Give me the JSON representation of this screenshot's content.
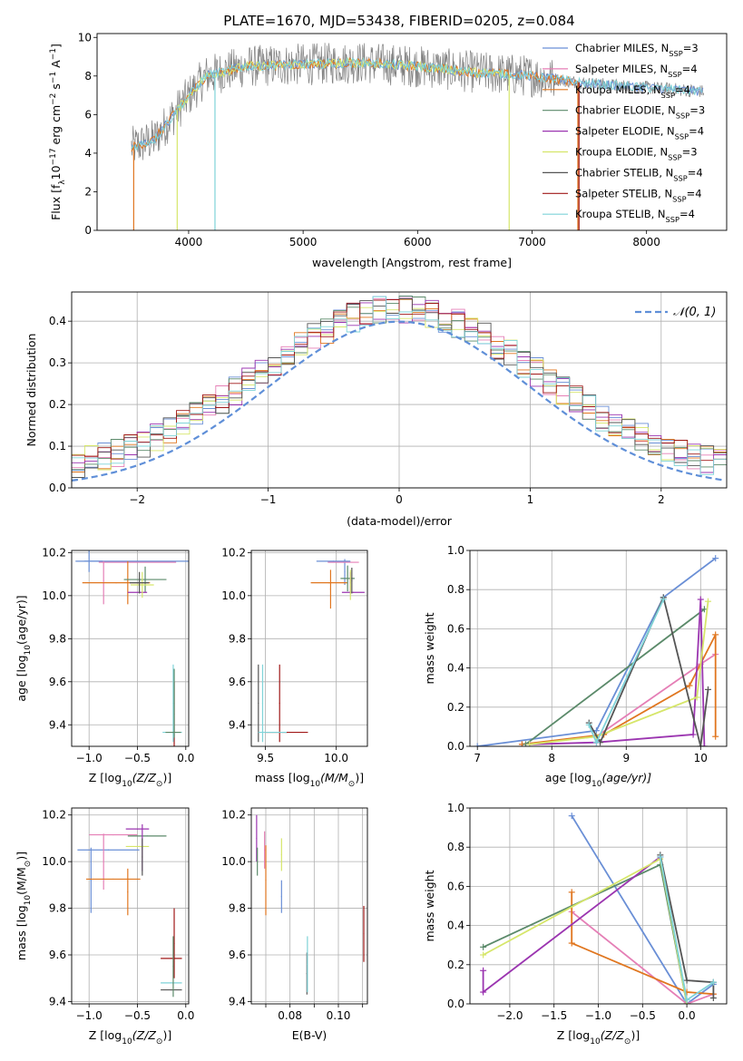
{
  "figure": {
    "title": "PLATE=1670, MJD=53438, FIBERID=0205, z=0.084"
  },
  "colors": {
    "chabrier_miles": "#6a8fd6",
    "salpeter_miles": "#e57fb6",
    "kroupa_miles": "#e0761f",
    "chabrier_elodie": "#5b8a6a",
    "salpeter_elodie": "#9b35b0",
    "kroupa_elodie": "#d6e66a",
    "chabrier_stelib": "#555555",
    "salpeter_stelib": "#a01818",
    "kroupa_stelib": "#7fd3d8",
    "data": "#808080",
    "normal": "#5f8fd8"
  },
  "chart_data": [
    {
      "id": "spectrum",
      "type": "line",
      "title": "PLATE=1670, MJD=53438, FIBERID=0205, z=0.084",
      "xlabel": "wavelength [Angstrom, rest frame]",
      "ylabel_parts": [
        "Flux [f",
        "λ",
        "10",
        "−17",
        " erg cm",
        "−2",
        " s",
        "−1",
        " A",
        "−1",
        "]"
      ],
      "xlim": [
        3200,
        8700
      ],
      "ylim": [
        0,
        10.2
      ],
      "xticks": [
        4000,
        5000,
        6000,
        7000,
        8000
      ],
      "yticks": [
        0,
        2,
        4,
        6,
        8,
        10
      ],
      "grid": false,
      "legend_position": "top-right",
      "legend": [
        {
          "name": "Chabrier MILES, N",
          "sub": "SSP",
          "suffix": "=3",
          "color": "#6a8fd6"
        },
        {
          "name": "Salpeter MILES, N",
          "sub": "SSP",
          "suffix": "=4",
          "color": "#e57fb6"
        },
        {
          "name": "Kroupa MILES, N",
          "sub": "SSP",
          "suffix": "=4",
          "color": "#e0761f"
        },
        {
          "name": "Chabrier ELODIE, N",
          "sub": "SSP",
          "suffix": "=3",
          "color": "#5b8a6a"
        },
        {
          "name": "Salpeter ELODIE, N",
          "sub": "SSP",
          "suffix": "=4",
          "color": "#9b35b0"
        },
        {
          "name": "Kroupa ELODIE, N",
          "sub": "SSP",
          "suffix": "=3",
          "color": "#d6e66a"
        },
        {
          "name": "Chabrier STELIB, N",
          "sub": "SSP",
          "suffix": "=4",
          "color": "#555555"
        },
        {
          "name": "Salpeter STELIB, N",
          "sub": "SSP",
          "suffix": "=4",
          "color": "#a01818"
        },
        {
          "name": "Kroupa STELIB, N",
          "sub": "SSP",
          "suffix": "=4",
          "color": "#7fd3d8"
        }
      ],
      "data_wavelength_range": [
        3500,
        8500
      ],
      "continuum_anchors": [
        [
          3500,
          4.3
        ],
        [
          3700,
          4.7
        ],
        [
          3950,
          6.6
        ],
        [
          4150,
          8.0
        ],
        [
          4500,
          8.5
        ],
        [
          5000,
          8.6
        ],
        [
          5500,
          8.7
        ],
        [
          6000,
          8.5
        ],
        [
          6500,
          8.2
        ],
        [
          7000,
          8.0
        ],
        [
          7500,
          7.6
        ],
        [
          8000,
          7.4
        ],
        [
          8500,
          7.2
        ]
      ],
      "model_ranges": [
        {
          "color": "#6a8fd6",
          "range": [
            3500,
            8500
          ]
        },
        {
          "color": "#e0761f",
          "range": [
            3500,
            7400
          ]
        },
        {
          "color": "#d6e66a",
          "range": [
            3900,
            6800
          ]
        },
        {
          "color": "#7fd3d8",
          "range": [
            3500,
            8500
          ]
        }
      ],
      "model_dropouts": [
        {
          "color": "#e0761f",
          "x": 3520
        },
        {
          "color": "#e0761f",
          "x": 7400
        },
        {
          "color": "#d6e66a",
          "x": 3900
        },
        {
          "color": "#d6e66a",
          "x": 6800
        },
        {
          "color": "#7fd3d8",
          "x": 4230
        },
        {
          "color": "#a01818",
          "x": 7410
        }
      ]
    },
    {
      "id": "residuals",
      "type": "step",
      "xlabel": "(data-model)/error",
      "ylabel": "Normed distribution",
      "xlim": [
        -2.5,
        2.5
      ],
      "ylim": [
        0,
        0.47
      ],
      "xticks": [
        -2,
        -1,
        0,
        1,
        2
      ],
      "yticks": [
        0.0,
        0.1,
        0.2,
        0.3,
        0.4
      ],
      "grid": true,
      "legend_position": "top-right",
      "legend": [
        {
          "name": "𝒩(0, 1)",
          "color": "#5f8fd8",
          "style": "dashed"
        }
      ],
      "bin_width": 0.1,
      "series_colors": [
        "#6a8fd6",
        "#e57fb6",
        "#e0761f",
        "#5b8a6a",
        "#9b35b0",
        "#d6e66a",
        "#555555",
        "#a01818",
        "#7fd3d8"
      ],
      "normal": {
        "mean": 0,
        "sigma": 1
      }
    },
    {
      "id": "age_vs_Z",
      "type": "errorbar",
      "xlabel_parts": [
        "Z [log",
        "10",
        "(Z/Z",
        "⊙",
        ")]"
      ],
      "ylabel_parts": [
        "age  [log",
        "10",
        "(age/yr)]"
      ],
      "xlim": [
        -1.18,
        0.03
      ],
      "ylim": [
        9.3,
        10.21
      ],
      "xticks": [
        -1.0,
        -0.5,
        0.0
      ],
      "yticks": [
        9.4,
        9.6,
        9.8,
        10.0,
        10.2
      ],
      "grid": true,
      "points": [
        {
          "color": "#6a8fd6",
          "x": -1.0,
          "xerr": 0.14,
          "y": 10.16,
          "yerr": 0.05
        },
        {
          "color": "#6a8fd6",
          "x": -0.5,
          "xerr": 0.55,
          "y": 10.16,
          "yerr": 0.0
        },
        {
          "color": "#e57fb6",
          "x": -0.85,
          "xerr": 0.0,
          "y": 10.06,
          "yerr": 0.1
        },
        {
          "color": "#e57fb6",
          "x": -0.5,
          "xerr": 0.4,
          "y": 10.155,
          "yerr": 0.0
        },
        {
          "color": "#e0761f",
          "x": -0.72,
          "xerr": 0.35,
          "y": 10.06,
          "yerr": 0.0
        },
        {
          "color": "#e0761f",
          "x": -0.6,
          "xerr": 0.0,
          "y": 10.06,
          "yerr": 0.1
        },
        {
          "color": "#5b8a6a",
          "x": -0.42,
          "xerr": 0.22,
          "y": 10.075,
          "yerr": 0.06
        },
        {
          "color": "#9b35b0",
          "x": -0.5,
          "xerr": 0.1,
          "y": 10.015,
          "yerr": 0.0
        },
        {
          "color": "#d6e66a",
          "x": -0.45,
          "xerr": 0.12,
          "y": 10.05,
          "yerr": 0.06
        },
        {
          "color": "#555555",
          "x": -0.48,
          "xerr": 0.1,
          "y": 10.06,
          "yerr": 0.05
        },
        {
          "color": "#a01818",
          "x": -0.12,
          "xerr": 0.0,
          "y": 9.45,
          "yerr": 0.15
        },
        {
          "color": "#7fd3d8",
          "x": -0.13,
          "xerr": 0.0,
          "y": 9.5,
          "yerr": 0.18
        },
        {
          "color": "#5b8a6a",
          "x": -0.12,
          "xerr": 0.0,
          "y": 9.5,
          "yerr": 0.16
        },
        {
          "color": "#7fd3d8",
          "x": -0.14,
          "xerr": 0.1,
          "y": 9.365,
          "yerr": 0.0
        },
        {
          "color": "#5b8a6a",
          "x": -0.13,
          "xerr": 0.08,
          "y": 9.365,
          "yerr": 0.0
        }
      ]
    },
    {
      "id": "age_vs_mass",
      "type": "errorbar",
      "xlabel_parts": [
        "mass [log",
        "10",
        "(M/M",
        "⊙",
        ")]"
      ],
      "xlim": [
        9.4,
        10.22
      ],
      "ylim": [
        9.3,
        10.21
      ],
      "xticks": [
        9.5,
        10.0
      ],
      "yticks": [
        9.4,
        9.6,
        9.8,
        10.0,
        10.2
      ],
      "grid": true,
      "points": [
        {
          "color": "#6a8fd6",
          "x": 9.98,
          "xerr": 0.12,
          "y": 10.16,
          "yerr": 0.0
        },
        {
          "color": "#6a8fd6",
          "x": 10.06,
          "xerr": 0.0,
          "y": 10.11,
          "yerr": 0.06
        },
        {
          "color": "#e57fb6",
          "x": 10.05,
          "xerr": 0.11,
          "y": 10.155,
          "yerr": 0.0
        },
        {
          "color": "#e0761f",
          "x": 9.95,
          "xerr": 0.13,
          "y": 10.06,
          "yerr": 0.0
        },
        {
          "color": "#e0761f",
          "x": 9.96,
          "xerr": 0.0,
          "y": 10.03,
          "yerr": 0.09
        },
        {
          "color": "#5b8a6a",
          "x": 10.08,
          "xerr": 0.05,
          "y": 10.08,
          "yerr": 0.06
        },
        {
          "color": "#9b35b0",
          "x": 10.12,
          "xerr": 0.08,
          "y": 10.015,
          "yerr": 0.0
        },
        {
          "color": "#9b35b0",
          "x": 10.1,
          "xerr": 0.0,
          "y": 10.06,
          "yerr": 0.05
        },
        {
          "color": "#d6e66a",
          "x": 10.1,
          "xerr": 0.0,
          "y": 10.05,
          "yerr": 0.07
        },
        {
          "color": "#555555",
          "x": 10.11,
          "xerr": 0.0,
          "y": 10.07,
          "yerr": 0.06
        },
        {
          "color": "#555555",
          "x": 9.45,
          "xerr": 0.0,
          "y": 9.5,
          "yerr": 0.18
        },
        {
          "color": "#7fd3d8",
          "x": 9.48,
          "xerr": 0.0,
          "y": 9.5,
          "yerr": 0.18
        },
        {
          "color": "#a01818",
          "x": 9.6,
          "xerr": 0.0,
          "y": 9.5,
          "yerr": 0.18
        },
        {
          "color": "#a01818",
          "x": 9.65,
          "xerr": 0.15,
          "y": 9.365,
          "yerr": 0.0
        },
        {
          "color": "#7fd3d8",
          "x": 9.55,
          "xerr": 0.1,
          "y": 9.365,
          "yerr": 0.0
        }
      ]
    },
    {
      "id": "weight_vs_age",
      "type": "line",
      "xlabel_parts": [
        "age  [log",
        "10",
        "(age/yr)]"
      ],
      "ylabel": "mass weight",
      "xlim": [
        6.9,
        10.35
      ],
      "ylim": [
        0,
        1.0
      ],
      "xticks": [
        7,
        8,
        9,
        10
      ],
      "yticks": [
        0.0,
        0.2,
        0.4,
        0.6,
        0.8,
        1.0
      ],
      "grid": true,
      "series": [
        {
          "color": "#6a8fd6",
          "x": [
            7.0,
            8.6,
            9.5,
            10.2
          ],
          "y": [
            0.0,
            0.08,
            0.76,
            0.96
          ]
        },
        {
          "color": "#e57fb6",
          "x": [
            7.6,
            8.6,
            10.0,
            10.2
          ],
          "y": [
            0.01,
            0.05,
            0.42,
            0.47
          ]
        },
        {
          "color": "#e0761f",
          "x": [
            7.6,
            8.7,
            9.85,
            10.2,
            10.2
          ],
          "y": [
            0.01,
            0.06,
            0.31,
            0.57,
            0.05
          ]
        },
        {
          "color": "#5b8a6a",
          "x": [
            7.65,
            10.05
          ],
          "y": [
            0.01,
            0.7
          ]
        },
        {
          "color": "#9b35b0",
          "x": [
            7.7,
            8.6,
            9.9,
            10.0,
            10.05
          ],
          "y": [
            0.01,
            0.02,
            0.06,
            0.75,
            0.0
          ]
        },
        {
          "color": "#d6e66a",
          "x": [
            7.7,
            8.6,
            9.95,
            10.1
          ],
          "y": [
            0.01,
            0.05,
            0.25,
            0.74
          ]
        },
        {
          "color": "#555555",
          "x": [
            8.5,
            8.65,
            9.5,
            10.0,
            10.1
          ],
          "y": [
            0.12,
            0.02,
            0.76,
            0.0,
            0.29
          ]
        },
        {
          "color": "#7fd3d8",
          "x": [
            8.5,
            8.6,
            9.5
          ],
          "y": [
            0.11,
            0.02,
            0.75
          ]
        }
      ]
    },
    {
      "id": "mass_vs_Z",
      "type": "errorbar",
      "xlabel_parts": [
        "Z [log",
        "10",
        "(Z/Z",
        "⊙",
        ")]"
      ],
      "ylabel_parts": [
        "mass [log",
        "10",
        "(M/M",
        "⊙",
        ")]"
      ],
      "xlim": [
        -1.18,
        0.03
      ],
      "ylim": [
        9.39,
        10.23
      ],
      "xticks": [
        -1.0,
        -0.5,
        0.0
      ],
      "yticks": [
        9.4,
        9.6,
        9.8,
        10.0,
        10.2
      ],
      "grid": true,
      "points": [
        {
          "color": "#6a8fd6",
          "x": -0.8,
          "xerr": 0.32,
          "y": 10.05,
          "yerr": 0.0
        },
        {
          "color": "#6a8fd6",
          "x": -0.98,
          "xerr": 0.0,
          "y": 9.92,
          "yerr": 0.14
        },
        {
          "color": "#e57fb6",
          "x": -0.75,
          "xerr": 0.25,
          "y": 10.115,
          "yerr": 0.0
        },
        {
          "color": "#e57fb6",
          "x": -0.85,
          "xerr": 0.0,
          "y": 10.0,
          "yerr": 0.12
        },
        {
          "color": "#e0761f",
          "x": -0.75,
          "xerr": 0.28,
          "y": 9.925,
          "yerr": 0.0
        },
        {
          "color": "#e0761f",
          "x": -0.6,
          "xerr": 0.0,
          "y": 9.87,
          "yerr": 0.1
        },
        {
          "color": "#5b8a6a",
          "x": -0.4,
          "xerr": 0.2,
          "y": 10.11,
          "yerr": 0.0
        },
        {
          "color": "#9b35b0",
          "x": -0.5,
          "xerr": 0.12,
          "y": 10.14,
          "yerr": 0.0
        },
        {
          "color": "#9b35b0",
          "x": -0.45,
          "xerr": 0.0,
          "y": 10.06,
          "yerr": 0.1
        },
        {
          "color": "#d6e66a",
          "x": -0.5,
          "xerr": 0.12,
          "y": 10.065,
          "yerr": 0.0
        },
        {
          "color": "#555555",
          "x": -0.45,
          "xerr": 0.0,
          "y": 10.02,
          "yerr": 0.08
        },
        {
          "color": "#a01818",
          "x": -0.15,
          "xerr": 0.11,
          "y": 9.585,
          "yerr": 0.0
        },
        {
          "color": "#a01818",
          "x": -0.12,
          "xerr": 0.0,
          "y": 9.65,
          "yerr": 0.15
        },
        {
          "color": "#7fd3d8",
          "x": -0.15,
          "xerr": 0.11,
          "y": 9.48,
          "yerr": 0.0
        },
        {
          "color": "#555555",
          "x": -0.15,
          "xerr": 0.11,
          "y": 9.45,
          "yerr": 0.0
        },
        {
          "color": "#5b8a6a",
          "x": -0.13,
          "xerr": 0.0,
          "y": 9.55,
          "yerr": 0.13
        }
      ]
    },
    {
      "id": "mass_vs_ebv",
      "type": "errorbar",
      "xlabel": "E(B-V)",
      "xlim": [
        0.064,
        0.112
      ],
      "ylim": [
        9.39,
        10.23
      ],
      "xticks": [
        0.07,
        0.08,
        0.09,
        0.1,
        0.11
      ],
      "xtick_labels": [
        "",
        "0.08",
        "",
        "0.10",
        ""
      ],
      "yticks": [
        9.4,
        9.6,
        9.8,
        10.0,
        10.2
      ],
      "grid": true,
      "points": [
        {
          "color": "#9b35b0",
          "x": 0.0662,
          "xerr": 0.0,
          "y": 10.1,
          "yerr": 0.1
        },
        {
          "color": "#5b8a6a",
          "x": 0.0665,
          "xerr": 0.0,
          "y": 10.0,
          "yerr": 0.06
        },
        {
          "color": "#e57fb6",
          "x": 0.0695,
          "xerr": 0.0,
          "y": 10.05,
          "yerr": 0.08
        },
        {
          "color": "#e0761f",
          "x": 0.07,
          "xerr": 0.0,
          "y": 9.92,
          "yerr": 0.15
        },
        {
          "color": "#d6e66a",
          "x": 0.0765,
          "xerr": 0.0,
          "y": 10.03,
          "yerr": 0.07
        },
        {
          "color": "#6a8fd6",
          "x": 0.0765,
          "xerr": 0.0,
          "y": 9.85,
          "yerr": 0.07
        },
        {
          "color": "#555555",
          "x": 0.087,
          "xerr": 0.0,
          "y": 9.52,
          "yerr": 0.09
        },
        {
          "color": "#7fd3d8",
          "x": 0.0872,
          "xerr": 0.0,
          "y": 9.56,
          "yerr": 0.12
        },
        {
          "color": "#a01818",
          "x": 0.1105,
          "xerr": 0.0,
          "y": 9.69,
          "yerr": 0.12
        }
      ]
    },
    {
      "id": "weight_vs_Z",
      "type": "line",
      "xlabel_parts": [
        "Z [log",
        "10",
        "(Z/Z",
        "⊙",
        ")]"
      ],
      "ylabel": "mass weight",
      "xlim": [
        -2.45,
        0.45
      ],
      "ylim": [
        0,
        1.0
      ],
      "xticks": [
        -2.0,
        -1.5,
        -1.0,
        -0.5,
        0.0
      ],
      "yticks": [
        0.0,
        0.2,
        0.4,
        0.6,
        0.8,
        1.0
      ],
      "grid": true,
      "series": [
        {
          "color": "#6a8fd6",
          "x": [
            -1.3,
            0.0,
            0.3
          ],
          "y": [
            0.96,
            0.0,
            0.1
          ]
        },
        {
          "color": "#e57fb6",
          "x": [
            -1.3,
            0.0,
            0.3
          ],
          "y": [
            0.47,
            0.0,
            0.05
          ]
        },
        {
          "color": "#e0761f",
          "x": [
            -1.3,
            -1.3,
            0.0,
            0.3
          ],
          "y": [
            0.57,
            0.31,
            0.06,
            0.05
          ]
        },
        {
          "color": "#5b8a6a",
          "x": [
            -2.3,
            -0.3,
            0.0
          ],
          "y": [
            0.29,
            0.71,
            0.0
          ]
        },
        {
          "color": "#9b35b0",
          "x": [
            -2.3,
            -2.3,
            -0.3
          ],
          "y": [
            0.17,
            0.06,
            0.75
          ]
        },
        {
          "color": "#d6e66a",
          "x": [
            -2.3,
            -0.3,
            0.0
          ],
          "y": [
            0.25,
            0.74,
            0.0
          ]
        },
        {
          "color": "#555555",
          "x": [
            -0.3,
            0.0,
            0.3,
            0.3
          ],
          "y": [
            0.76,
            0.12,
            0.11,
            0.03
          ]
        },
        {
          "color": "#7fd3d8",
          "x": [
            -0.3,
            0.0,
            0.3
          ],
          "y": [
            0.75,
            0.02,
            0.11
          ]
        }
      ]
    }
  ]
}
